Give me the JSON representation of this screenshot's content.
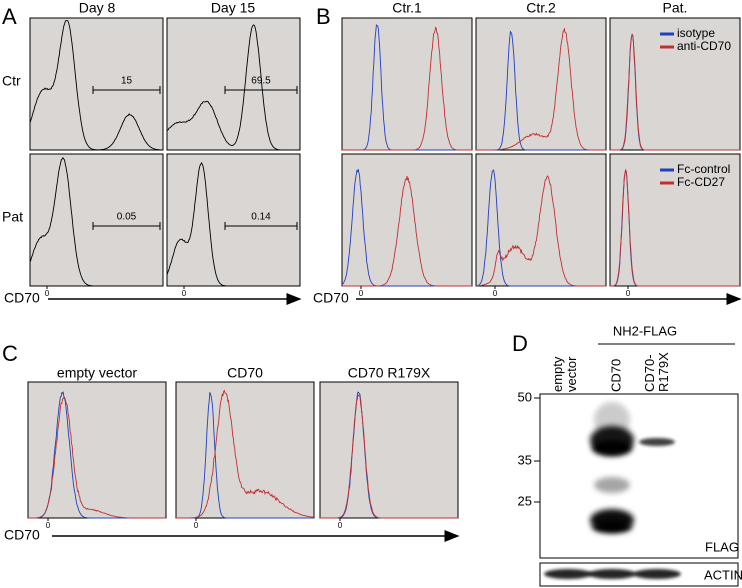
{
  "panel_a": {
    "letter": "A",
    "columns": [
      "Day 8",
      "Day 15"
    ],
    "rows": [
      "Ctr",
      "Pat"
    ],
    "gates": [
      [
        15,
        69.5
      ],
      [
        0.05,
        0.14
      ]
    ],
    "axis_label": "CD70",
    "zero_tick": 0
  },
  "panel_b": {
    "letter": "B",
    "columns": [
      "Ctr.1",
      "Ctr.2",
      "Pat."
    ],
    "legend_top": [
      "isotype",
      "anti-CD70"
    ],
    "legend_bottom": [
      "Fc-control",
      "Fc-CD27"
    ],
    "axis_label": "CD70",
    "zero_tick": 0
  },
  "panel_c": {
    "letter": "C",
    "columns": [
      "empty vector",
      "CD70",
      "CD70 R179X"
    ],
    "axis_label": "CD70",
    "zero_tick": 0
  },
  "panel_d": {
    "letter": "D",
    "lanes": [
      "empty vector",
      "CD70",
      "CD70-R179X"
    ],
    "group_label": "NH2-FLAG",
    "markers": [
      50,
      35,
      25
    ],
    "blots": [
      "FLAG",
      "ACTIN"
    ]
  }
}
